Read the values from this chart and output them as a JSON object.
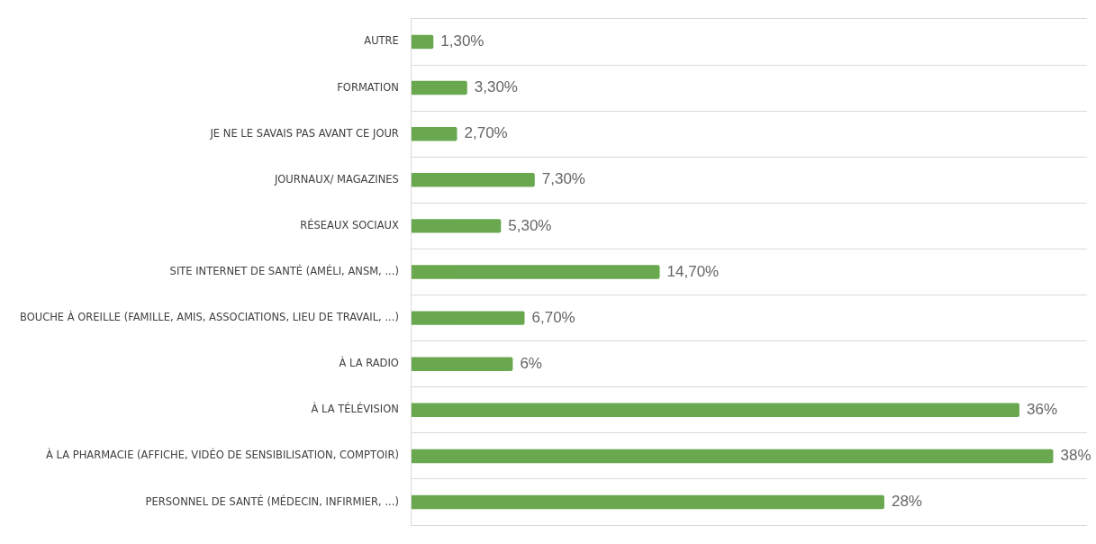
{
  "chart_data": {
    "type": "bar",
    "orientation": "horizontal",
    "categories": [
      "AUTRE",
      "FORMATION",
      "JE NE LE SAVAIS PAS AVANT CE JOUR",
      "JOURNAUX/ MAGAZINES",
      "RÉSEAUX SOCIAUX",
      "SITE INTERNET DE SANTÉ (AMÉLI, ANSM, ...)",
      "BOUCHE À OREILLE (FAMILLE, AMIS, ASSOCIATIONS, LIEU DE TRAVAIL, ...)",
      "À LA RADIO",
      "À LA TÉLÉVISION",
      "À LA PHARMACIE (AFFICHE, VIDÉO DE SENSIBILISATION, COMPTOIR)",
      "PERSONNEL DE SANTÉ (MÉDECIN, INFIRMIER, ...)"
    ],
    "values": [
      1.3,
      3.3,
      2.7,
      7.3,
      5.3,
      14.7,
      6.7,
      6,
      36,
      38,
      28
    ],
    "value_labels": [
      "1,30%",
      "3,30%",
      "2,70%",
      "7,30%",
      "5,30%",
      "14,70%",
      "6,70%",
      "6%",
      "36%",
      "38%",
      "28%"
    ],
    "color": "#6aa84f",
    "grid": "y",
    "legend": false,
    "tick_labels": "y"
  }
}
